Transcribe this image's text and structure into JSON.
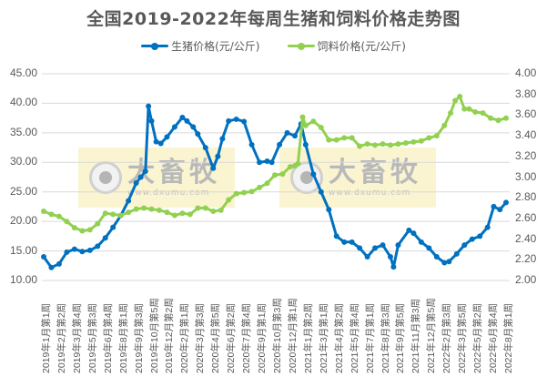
{
  "chart_data": {
    "type": "line",
    "title": "全国2019-2022年每周生猪和饲料价格走势图",
    "xlabel": "",
    "ylabel_left": "生猪价格(元/公斤)",
    "ylabel_right": "饲料价格(元/公斤)",
    "ylim_left": [
      10,
      45
    ],
    "ylim_right": [
      2.0,
      4.0
    ],
    "yticks_left": [
      "45.00",
      "40.00",
      "35.00",
      "30.00",
      "25.00",
      "20.00",
      "15.00",
      "10.00"
    ],
    "yticks_right": [
      "4.00",
      "3.80",
      "3.60",
      "3.40",
      "3.20",
      "3.00",
      "2.80",
      "2.60",
      "2.40",
      "2.20",
      "2.00"
    ],
    "grid": true,
    "legend_position": "top",
    "categories": [
      "2019年1月第1周",
      "2019年2月第2周",
      "2019年3月第4周",
      "2019年5月第3周",
      "2019年6月第4周",
      "2019年8月第1周",
      "2019年9月第3周",
      "2019年10月第5周",
      "2019年12月第2周",
      "2020年2月第1周",
      "2020年3月第3周",
      "2020年4月第5周",
      "2020年6月第2周",
      "2020年7月第4周",
      "2020年9月第1周",
      "2020年10月第3周",
      "2020年12月第1周",
      "2021年1月第2周",
      "2021年3月第1周",
      "2021年4月第2周",
      "2021年5月第4周",
      "2021年7月第1周",
      "2021年8月第3周",
      "2021年9月第5周",
      "2021年11月第3周",
      "2021年12月第5周",
      "2022年2月第3周",
      "2022年3月第5周",
      "2022年5月第2周",
      "2022年6月第4周",
      "2022年8月第1周"
    ],
    "series": [
      {
        "name": "生猪价格(元/公斤)",
        "axis": "left",
        "color": "#0070C0",
        "x": [
          0,
          0.5,
          1,
          1.5,
          2,
          2.5,
          3,
          3.5,
          4,
          4.5,
          5,
          5.5,
          6,
          6.3,
          6.6,
          6.8,
          7,
          7.3,
          7.6,
          8,
          8.5,
          9,
          9.3,
          9.7,
          10,
          10.5,
          11,
          11.3,
          11.6,
          12,
          12.5,
          13,
          13.5,
          14,
          14.5,
          14.8,
          15.3,
          15.8,
          16.3,
          16.7,
          17,
          17.5,
          18,
          18.5,
          19,
          19.5,
          20,
          20.5,
          21,
          21.5,
          22,
          22.5,
          22.7,
          23,
          23.7,
          24,
          24.5,
          25,
          25.5,
          26,
          26.3,
          26.8,
          27.3,
          27.8,
          28.3,
          28.8,
          29.2,
          29.6,
          30
        ],
        "values": [
          14.0,
          12.2,
          12.8,
          14.8,
          15.3,
          14.9,
          15.1,
          15.8,
          17.2,
          19.0,
          21.0,
          23.5,
          26.5,
          27.5,
          28.5,
          39.5,
          37.0,
          33.5,
          33.2,
          34.3,
          36.0,
          37.6,
          37.0,
          36.0,
          34.8,
          32.5,
          29.0,
          31.0,
          34.0,
          37.0,
          37.3,
          36.9,
          33.0,
          30.0,
          30.2,
          30.0,
          33.0,
          35.0,
          34.5,
          36.5,
          33.0,
          28.0,
          25.0,
          22.0,
          17.5,
          16.5,
          16.5,
          15.5,
          14.0,
          15.5,
          16.0,
          14.0,
          12.3,
          16.0,
          18.5,
          18.0,
          16.5,
          15.5,
          14.0,
          13.0,
          13.2,
          14.5,
          16.0,
          17.0,
          17.5,
          19.0,
          22.5,
          22.0,
          23.2
        ]
      },
      {
        "name": "饲料价格(元/公斤)",
        "axis": "right",
        "color": "#92D050",
        "x": [
          0,
          0.5,
          1,
          1.5,
          2,
          2.5,
          3,
          3.5,
          4,
          4.5,
          5,
          5.5,
          6,
          6.5,
          7,
          7.5,
          8,
          8.5,
          9,
          9.5,
          10,
          10.5,
          11,
          11.5,
          12,
          12.5,
          13,
          13.5,
          14,
          14.5,
          15,
          15.5,
          16,
          16.3,
          16.5,
          16.8,
          17,
          17.5,
          18,
          18.5,
          19,
          19.5,
          20,
          20.5,
          21,
          21.5,
          22,
          22.5,
          23,
          23.5,
          24,
          24.5,
          25,
          25.5,
          26,
          26.4,
          26.7,
          27,
          27.3,
          27.6,
          28,
          28.5,
          29,
          29.5,
          30
        ],
        "values": [
          2.67,
          2.64,
          2.62,
          2.57,
          2.51,
          2.48,
          2.49,
          2.55,
          2.65,
          2.64,
          2.63,
          2.66,
          2.69,
          2.7,
          2.69,
          2.68,
          2.66,
          2.63,
          2.65,
          2.64,
          2.7,
          2.7,
          2.67,
          2.68,
          2.78,
          2.84,
          2.85,
          2.86,
          2.9,
          2.94,
          3.02,
          3.03,
          3.1,
          3.11,
          3.13,
          3.58,
          3.5,
          3.54,
          3.48,
          3.36,
          3.36,
          3.38,
          3.38,
          3.3,
          3.32,
          3.31,
          3.32,
          3.31,
          3.32,
          3.33,
          3.34,
          3.35,
          3.38,
          3.4,
          3.5,
          3.62,
          3.74,
          3.78,
          3.66,
          3.66,
          3.63,
          3.62,
          3.57,
          3.55,
          3.57
        ]
      }
    ]
  },
  "watermark": {
    "name": "大畜牧",
    "url": "www.dxumu.com"
  }
}
